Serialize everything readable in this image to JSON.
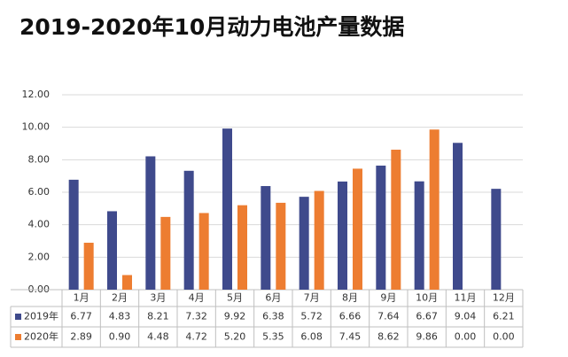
{
  "chart_data": {
    "type": "bar",
    "title": "2019-2020年10月动力电池产量数据",
    "categories": [
      "1月",
      "2月",
      "3月",
      "4月",
      "5月",
      "6月",
      "7月",
      "8月",
      "9月",
      "10月",
      "11月",
      "12月"
    ],
    "series": [
      {
        "name": "2019年",
        "color": "#3f4a8c",
        "values": [
          6.77,
          4.83,
          8.21,
          7.32,
          9.92,
          6.38,
          5.72,
          6.66,
          7.64,
          6.67,
          9.04,
          6.21
        ],
        "value_labels": [
          "6.77",
          "4.83",
          "8.21",
          "7.32",
          "9.92",
          "6.38",
          "5.72",
          "6.66",
          "7.64",
          "6.67",
          "9.04",
          "6.21"
        ]
      },
      {
        "name": "2020年",
        "color": "#ed7d31",
        "values": [
          2.89,
          0.9,
          4.48,
          4.72,
          5.2,
          5.35,
          6.08,
          7.45,
          8.62,
          9.86,
          0,
          0
        ],
        "value_labels": [
          "2.89",
          "0.90",
          "4.48",
          "4.72",
          "5.20",
          "5.35",
          "6.08",
          "7.45",
          "8.62",
          "9.86",
          "0.00",
          "0.00"
        ]
      }
    ],
    "ylim": [
      0,
      12
    ],
    "yticks": [
      {
        "value": 0,
        "label": "0.00"
      },
      {
        "value": 2,
        "label": "2.00"
      },
      {
        "value": 4,
        "label": "4.00"
      },
      {
        "value": 6,
        "label": "6.00"
      },
      {
        "value": 8,
        "label": "8.00"
      },
      {
        "value": 10,
        "label": "10.00"
      },
      {
        "value": 12,
        "label": "12.00"
      }
    ],
    "grid": true
  }
}
